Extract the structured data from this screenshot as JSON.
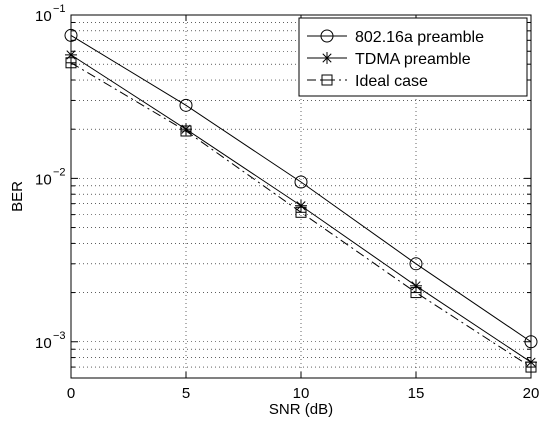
{
  "chart_data": {
    "type": "line",
    "title": "",
    "xlabel": "SNR (dB)",
    "ylabel": "BER",
    "xlim": [
      0,
      20
    ],
    "ylim": [
      0.0006,
      0.1
    ],
    "yscale": "log",
    "grid": true,
    "legend_position": "top-right",
    "x_ticks": [
      0,
      5,
      10,
      15,
      20
    ],
    "x_tick_labels": [
      "0",
      "5",
      "10",
      "15",
      "20"
    ],
    "y_ticks": [
      0.001,
      0.01,
      0.1
    ],
    "y_tick_labels": [
      {
        "base": "10",
        "exp": "−3"
      },
      {
        "base": "10",
        "exp": "−2"
      },
      {
        "base": "10",
        "exp": "−1"
      }
    ],
    "series": [
      {
        "name": "802.16a preamble",
        "marker": "circle",
        "line_style": "solid",
        "color": "#000000",
        "x": [
          0,
          5,
          10,
          15,
          20
        ],
        "y": [
          0.075,
          0.028,
          0.0095,
          0.003,
          0.001
        ]
      },
      {
        "name": "TDMA preamble",
        "marker": "asterisk",
        "line_style": "solid",
        "color": "#000000",
        "x": [
          0,
          5,
          10,
          15,
          20
        ],
        "y": [
          0.057,
          0.02,
          0.0068,
          0.0022,
          0.00075
        ]
      },
      {
        "name": "Ideal case",
        "marker": "square",
        "line_style": "dashdot",
        "color": "#000000",
        "x": [
          0,
          5,
          10,
          15,
          20
        ],
        "y": [
          0.051,
          0.0195,
          0.0062,
          0.002,
          0.0007
        ]
      }
    ]
  }
}
